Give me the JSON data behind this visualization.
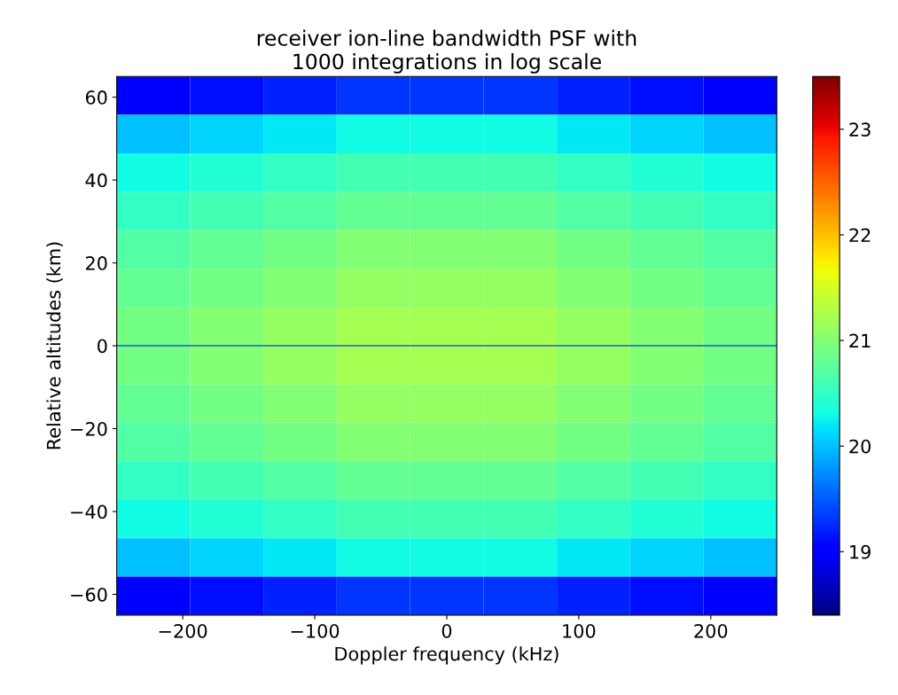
{
  "chart_data": {
    "type": "heatmap",
    "title": "receiver ion-line bandwidth PSF with\n1000 integrations in log scale",
    "xlabel": "Doppler frequency (kHz)",
    "ylabel": "Relative altitudes (km)",
    "x": [
      -222.2,
      -166.7,
      -111.1,
      -55.6,
      0,
      55.6,
      111.1,
      166.7,
      222.2
    ],
    "y": [
      60.4,
      51.1,
      41.8,
      32.5,
      23.2,
      13.9,
      4.6,
      -4.6,
      -13.9,
      -23.2,
      -32.5,
      -41.8,
      -51.1,
      -60.4
    ],
    "xlim": [
      -250,
      250
    ],
    "xticks": [
      -200,
      -100,
      0,
      100,
      200
    ],
    "ylim": [
      -65,
      65
    ],
    "yticks": [
      -60,
      -40,
      -20,
      0,
      20,
      40,
      60
    ],
    "clim": [
      18.4,
      23.5
    ],
    "cticks": [
      19,
      20,
      21,
      22,
      23
    ],
    "ref_lines": [
      {
        "axis": "y",
        "value": 0,
        "label": null,
        "color": "#0000ff"
      }
    ],
    "cells": [
      [
        19.0,
        19.1,
        19.2,
        19.3,
        19.3,
        19.3,
        19.2,
        19.1,
        19.0
      ],
      [
        20.0,
        20.1,
        20.2,
        20.3,
        20.3,
        20.3,
        20.2,
        20.1,
        20.0
      ],
      [
        20.3,
        20.4,
        20.5,
        20.6,
        20.6,
        20.6,
        20.5,
        20.4,
        20.3
      ],
      [
        20.5,
        20.6,
        20.7,
        20.8,
        20.8,
        20.8,
        20.7,
        20.6,
        20.5
      ],
      [
        20.7,
        20.8,
        20.9,
        21.0,
        21.0,
        21.0,
        20.9,
        20.8,
        20.7
      ],
      [
        20.8,
        20.9,
        21.0,
        21.1,
        21.1,
        21.1,
        21.0,
        20.9,
        20.8
      ],
      [
        20.9,
        21.0,
        21.1,
        21.2,
        21.2,
        21.2,
        21.1,
        21.0,
        20.9
      ],
      [
        20.9,
        21.0,
        21.1,
        21.2,
        21.2,
        21.2,
        21.1,
        21.0,
        20.9
      ],
      [
        20.8,
        20.9,
        21.0,
        21.1,
        21.1,
        21.1,
        21.0,
        20.9,
        20.8
      ],
      [
        20.7,
        20.8,
        20.9,
        21.0,
        21.0,
        21.0,
        20.9,
        20.8,
        20.7
      ],
      [
        20.5,
        20.6,
        20.7,
        20.8,
        20.8,
        20.8,
        20.7,
        20.6,
        20.5
      ],
      [
        20.3,
        20.4,
        20.5,
        20.6,
        20.6,
        20.6,
        20.5,
        20.4,
        20.3
      ],
      [
        20.0,
        20.1,
        20.2,
        20.3,
        20.3,
        20.3,
        20.2,
        20.1,
        20.0
      ],
      [
        19.0,
        19.1,
        19.2,
        19.3,
        19.3,
        19.3,
        19.2,
        19.1,
        19.0
      ]
    ]
  }
}
